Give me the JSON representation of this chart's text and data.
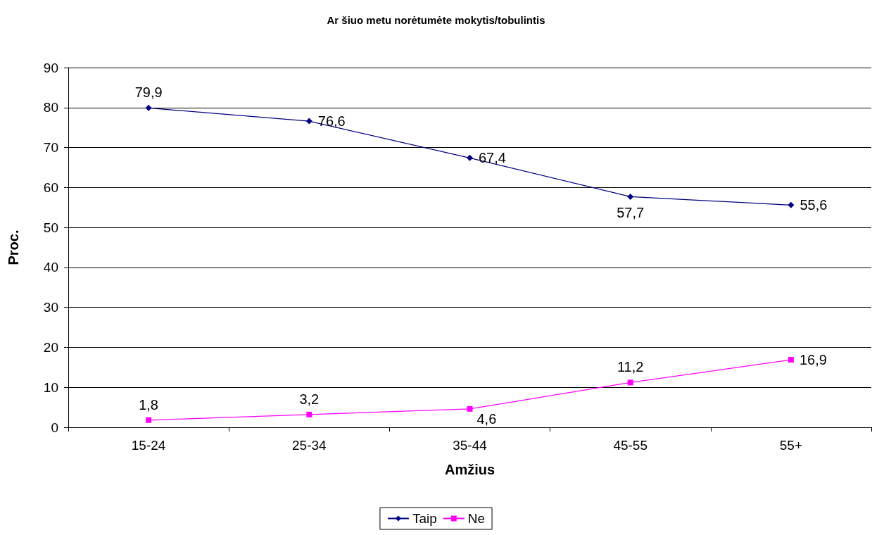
{
  "chart_data": {
    "type": "line",
    "title": "Ar šiuo metu norėtumėte mokytis/tobulintis",
    "xlabel": "Amžius",
    "ylabel": "Proc.",
    "categories": [
      "15-24",
      "25-34",
      "35-44",
      "45-55",
      "55+"
    ],
    "series": [
      {
        "name": "Taip",
        "color": "#000080",
        "marker": "diamond",
        "values": [
          79.9,
          76.6,
          67.4,
          57.7,
          55.6
        ],
        "value_labels": [
          "79,9",
          "76,6",
          "67,4",
          "57,7",
          "55,6"
        ]
      },
      {
        "name": "Ne",
        "color": "#ff00ff",
        "marker": "square",
        "values": [
          1.8,
          3.2,
          4.6,
          11.2,
          16.9
        ],
        "value_labels": [
          "1,8",
          "3,2",
          "4,6",
          "11,2",
          "16,9"
        ]
      }
    ],
    "ylim": [
      0,
      90
    ],
    "yticks": [
      0,
      10,
      20,
      30,
      40,
      50,
      60,
      70,
      80,
      90
    ],
    "grid": "y",
    "legend": "bottom",
    "line_style": "solid"
  }
}
